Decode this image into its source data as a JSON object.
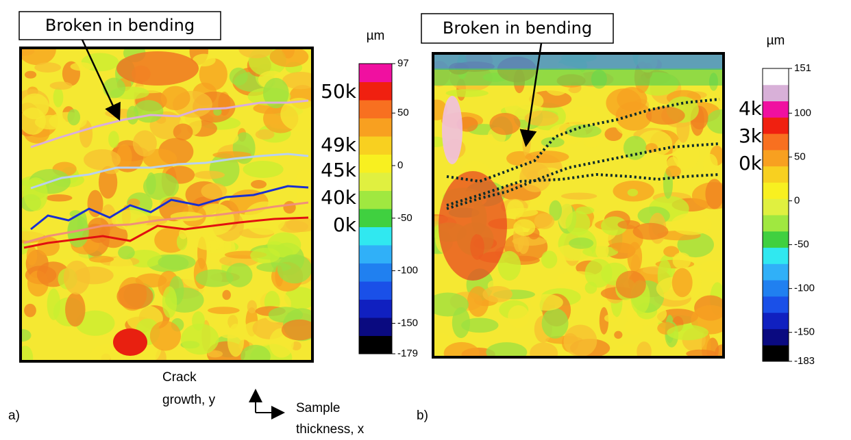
{
  "panel_a": {
    "label": "a)",
    "callout": "Broken in bending",
    "crack_fronts": [
      "50k",
      "49k",
      "45k",
      "40k",
      "0k"
    ],
    "colorbar": {
      "unit": "µm",
      "ticks": [
        97,
        50,
        0,
        -50,
        -100,
        -150,
        -179
      ]
    }
  },
  "panel_b": {
    "label": "b)",
    "callout": "Broken in bending",
    "crack_fronts": [
      "4k",
      "3k",
      "0k"
    ],
    "colorbar": {
      "unit": "µm",
      "ticks": [
        151,
        100,
        50,
        0,
        -50,
        -100,
        -150,
        -183
      ]
    }
  },
  "axes": {
    "y_label": [
      "Crack",
      "growth, y"
    ],
    "x_label": [
      "Sample",
      "thickness, x"
    ]
  }
}
